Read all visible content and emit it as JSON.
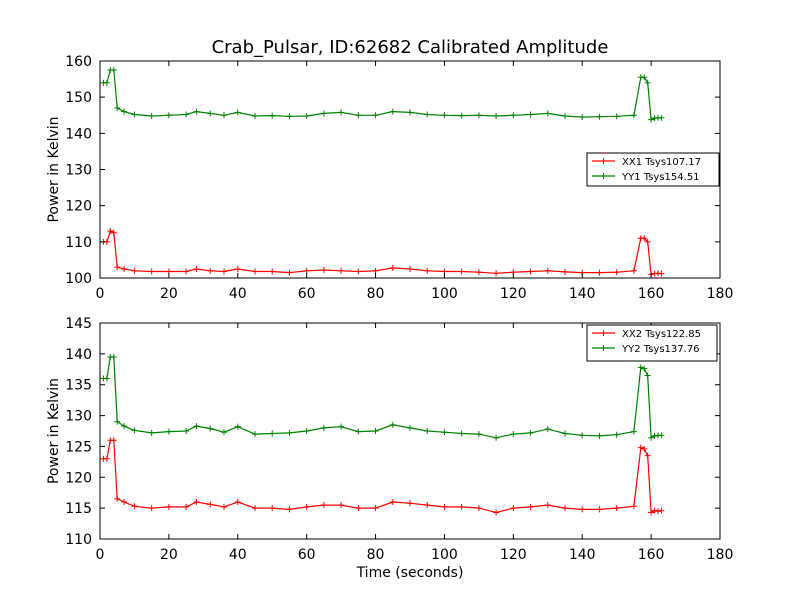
{
  "figure_title": "Crab_Pulsar, ID:62682 Calibrated Amplitude",
  "colors": {
    "red": "#ff0000",
    "green": "#008000",
    "axes": "#000000"
  },
  "chart_data": [
    {
      "type": "line",
      "xlabel": "",
      "ylabel": "Power in Kelvin",
      "xlim": [
        0,
        180
      ],
      "ylim": [
        100,
        160
      ],
      "xticks": [
        0,
        20,
        40,
        60,
        80,
        100,
        120,
        140,
        160,
        180
      ],
      "yticks": [
        100,
        110,
        120,
        130,
        140,
        150,
        160
      ],
      "grid": false,
      "legend_position": "center-right",
      "x": [
        1,
        2,
        3,
        4,
        5,
        7,
        10,
        15,
        20,
        25,
        28,
        32,
        36,
        40,
        45,
        50,
        55,
        60,
        65,
        70,
        75,
        80,
        85,
        90,
        95,
        100,
        105,
        110,
        115,
        120,
        125,
        130,
        135,
        140,
        145,
        150,
        155,
        157,
        158,
        159,
        160,
        161,
        162,
        163
      ],
      "series": [
        {
          "name": "XX1 Tsys107.17",
          "color": "#ff0000",
          "values": [
            110,
            110,
            113,
            112.5,
            103,
            102.5,
            102,
            101.8,
            101.8,
            101.8,
            102.5,
            102,
            101.8,
            102.5,
            101.8,
            101.8,
            101.5,
            102,
            102.2,
            102,
            101.8,
            102,
            102.8,
            102.5,
            102,
            101.8,
            101.8,
            101.6,
            101.3,
            101.6,
            101.8,
            102,
            101.7,
            101.5,
            101.5,
            101.6,
            102,
            111,
            111,
            110,
            101,
            101.2,
            101.3,
            101.2
          ]
        },
        {
          "name": "YY1 Tsys154.51",
          "color": "#008000",
          "values": [
            154,
            154,
            157.5,
            157.5,
            147,
            146,
            145.2,
            144.8,
            145,
            145.2,
            146,
            145.5,
            145,
            145.8,
            144.8,
            144.9,
            144.7,
            144.8,
            145.5,
            145.8,
            145,
            145,
            146,
            145.8,
            145.2,
            145,
            144.9,
            145,
            144.8,
            145,
            145.2,
            145.5,
            144.8,
            144.5,
            144.6,
            144.7,
            145,
            155.5,
            155.5,
            154,
            143.8,
            144.2,
            144.3,
            144.3
          ]
        }
      ]
    },
    {
      "type": "line",
      "xlabel": "Time (seconds)",
      "ylabel": "Power in Kelvin",
      "xlim": [
        0,
        180
      ],
      "ylim": [
        110,
        145
      ],
      "xticks": [
        0,
        20,
        40,
        60,
        80,
        100,
        120,
        140,
        160,
        180
      ],
      "yticks": [
        110,
        115,
        120,
        125,
        130,
        135,
        140,
        145
      ],
      "grid": false,
      "legend_position": "top-right",
      "x": [
        1,
        2,
        3,
        4,
        5,
        7,
        10,
        15,
        20,
        25,
        28,
        32,
        36,
        40,
        45,
        50,
        55,
        60,
        65,
        70,
        75,
        80,
        85,
        90,
        95,
        100,
        105,
        110,
        115,
        120,
        125,
        130,
        135,
        140,
        145,
        150,
        155,
        157,
        158,
        159,
        160,
        161,
        162,
        163
      ],
      "series": [
        {
          "name": "XX2 Tsys122.85",
          "color": "#ff0000",
          "values": [
            123,
            123,
            126,
            126,
            116.5,
            116,
            115.3,
            115,
            115.2,
            115.2,
            116,
            115.6,
            115.2,
            116,
            115,
            115,
            114.8,
            115.2,
            115.5,
            115.5,
            115,
            115,
            116,
            115.8,
            115.5,
            115.2,
            115.2,
            115,
            114.3,
            115,
            115.2,
            115.5,
            115,
            114.8,
            114.8,
            115,
            115.3,
            124.8,
            124.6,
            123.5,
            114.3,
            114.6,
            114.5,
            114.6
          ]
        },
        {
          "name": "YY2 Tsys137.76",
          "color": "#008000",
          "values": [
            136,
            136,
            139.5,
            139.5,
            129,
            128.3,
            127.6,
            127.2,
            127.4,
            127.5,
            128.3,
            127.9,
            127.3,
            128.2,
            127,
            127.1,
            127.2,
            127.5,
            128,
            128.2,
            127.4,
            127.5,
            128.5,
            128,
            127.5,
            127.3,
            127.1,
            127,
            126.4,
            127,
            127.2,
            127.8,
            127.1,
            126.8,
            126.7,
            126.9,
            127.4,
            137.8,
            137.6,
            136.5,
            126.4,
            126.7,
            126.8,
            126.8
          ]
        }
      ]
    }
  ]
}
